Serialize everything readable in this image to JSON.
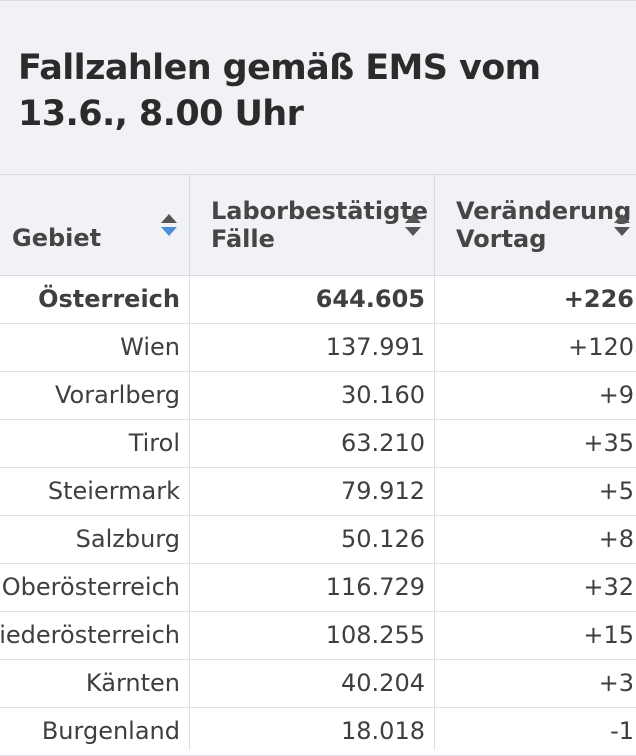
{
  "title": "Fallzahlen gemäß EMS vom 13.6., 8.00 Uhr",
  "columns": [
    {
      "label_line1": "Gebiet",
      "label_line2": ""
    },
    {
      "label_line1": "Laborbestätigte",
      "label_line2": "Fälle"
    },
    {
      "label_line1": "Veränderung",
      "label_line2": "Vortag"
    }
  ],
  "sorted_column": "Gebiet",
  "colors": {
    "sort_active": "#4a8fd8",
    "header_bg": "#f1f2f5"
  },
  "rows": [
    {
      "region": "Österreich",
      "cases": "644.605",
      "change": "+226"
    },
    {
      "region": "Wien",
      "cases": "137.991",
      "change": "+120"
    },
    {
      "region": "Vorarlberg",
      "cases": "30.160",
      "change": "+9"
    },
    {
      "region": "Tirol",
      "cases": "63.210",
      "change": "+35"
    },
    {
      "region": "Steiermark",
      "cases": "79.912",
      "change": "+5"
    },
    {
      "region": "Salzburg",
      "cases": "50.126",
      "change": "+8"
    },
    {
      "region": "Oberösterreich",
      "cases": "116.729",
      "change": "+32"
    },
    {
      "region": "Niederösterreich",
      "cases": "108.255",
      "change": "+15"
    },
    {
      "region": "Kärnten",
      "cases": "40.204",
      "change": "+3"
    },
    {
      "region": "Burgenland",
      "cases": "18.018",
      "change": "-1"
    }
  ]
}
